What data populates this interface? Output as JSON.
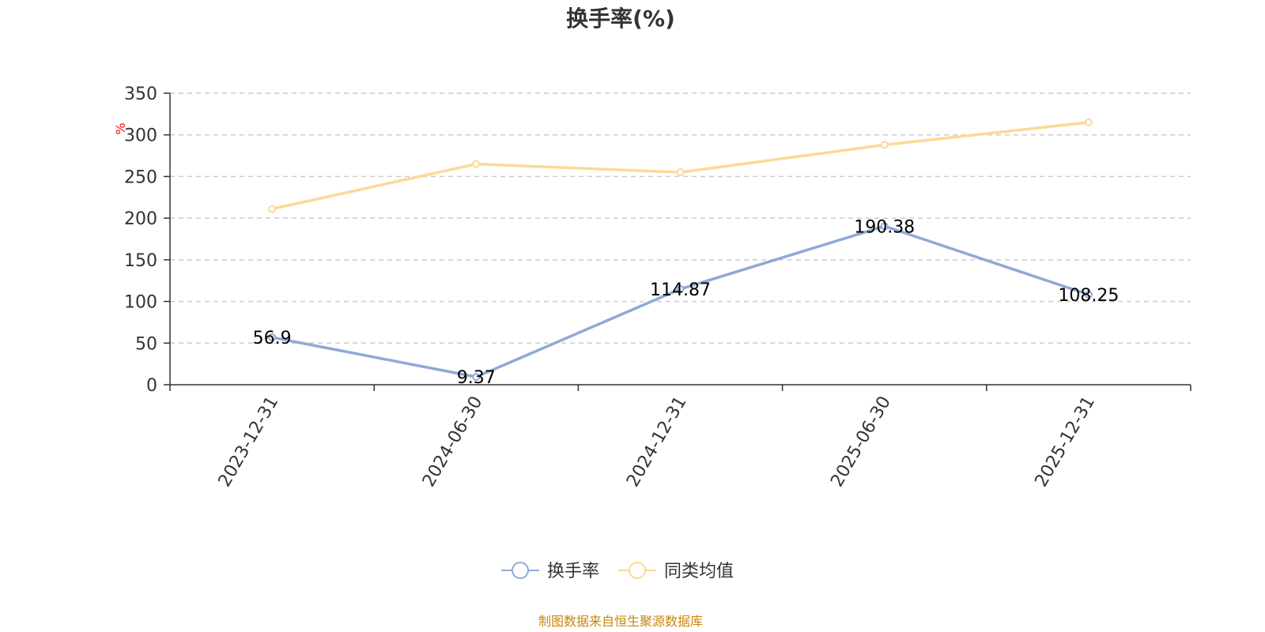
{
  "chart_data": {
    "type": "line",
    "title": "换手率(%)",
    "ylabel": "%",
    "xlabel": "",
    "categories": [
      "2023-12-31",
      "2024-06-30",
      "2024-12-31",
      "2025-06-30",
      "2025-12-31"
    ],
    "ylim": [
      0,
      350
    ],
    "yticks": [
      0,
      50,
      100,
      150,
      200,
      250,
      300,
      350
    ],
    "grid": true,
    "legend_position": "bottom",
    "series": [
      {
        "name": "换手率",
        "values": [
          56.9,
          9.37,
          114.87,
          190.38,
          108.25
        ],
        "labels": [
          "56.9",
          "9.37",
          "114.87",
          "190.38",
          "108.25"
        ],
        "color": "#8eaad6",
        "show_labels": true
      },
      {
        "name": "同类均值",
        "values": [
          211,
          265,
          255,
          288,
          315
        ],
        "color": "#fcd997",
        "show_labels": false
      }
    ]
  },
  "source": {
    "text": "制图数据来自恒生聚源数据库",
    "color": "#c8860a"
  },
  "colors": {
    "axis": "#333333",
    "grid": "#cccccc"
  }
}
